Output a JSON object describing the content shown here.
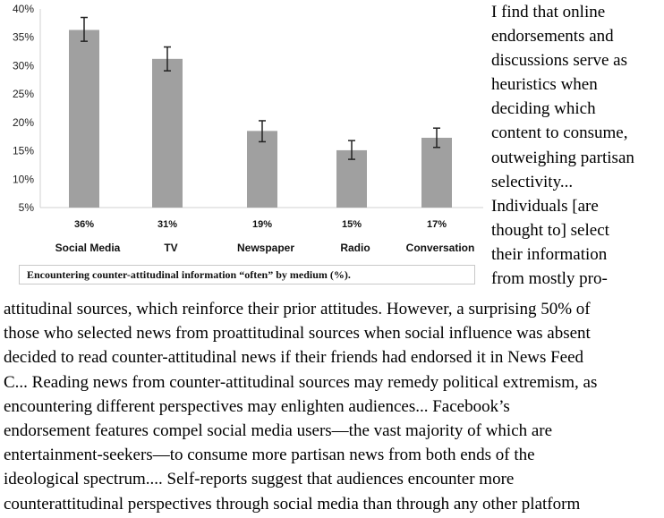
{
  "chart_data": {
    "type": "bar",
    "title": "Encountering counter-attitudinal information “often” by medium (%).",
    "categories": [
      "Social Media",
      "TV",
      "Newspaper",
      "Radio",
      "Conversation"
    ],
    "values": [
      36.3,
      31.2,
      18.5,
      15.1,
      17.3
    ],
    "value_labels": [
      "36%",
      "31%",
      "19%",
      "15%",
      "17%"
    ],
    "error_low": [
      34.3,
      29.1,
      16.6,
      13.5,
      15.6
    ],
    "error_high": [
      38.5,
      33.3,
      20.3,
      16.8,
      19.0
    ],
    "yticks": [
      "5%",
      "10%",
      "15%",
      "20%",
      "25%",
      "30%",
      "35%",
      "40%"
    ],
    "ytick_values": [
      5,
      10,
      15,
      20,
      25,
      30,
      35,
      40
    ],
    "ylim": [
      5,
      40
    ],
    "xlabel": "",
    "ylabel": "",
    "grid": false,
    "bar_color": "#a0a0a0",
    "error_color": "#222222"
  },
  "side_text": [
    " I find that online",
    "endorsements and",
    "discussions serve as",
    "heuristics when",
    "deciding which",
    "content to consume,",
    "outweighing partisan",
    "selectivity...",
    "Individuals [are",
    "thought to] select",
    "their information",
    "from mostly pro-"
  ],
  "main_text": [
    "attitudinal sources, which reinforce their prior attitudes. However, a surprising 50% of",
    "those who selected news from proattitudinal sources when social influence was absent",
    "decided to read counter-attitudinal news if their friends had endorsed it in News Feed",
    "C... Reading news from counter-attitudinal sources may remedy political extremism, as",
    "encountering different perspectives may enlighten audiences... Facebook’s",
    "endorsement features compel social media users—the vast majority of which are",
    "entertainment-seekers—to consume more partisan news from both ends of the",
    "ideological spectrum.... Self-reports suggest that audiences encounter more",
    "counterattitudinal perspectives through social media than through any other platform"
  ]
}
